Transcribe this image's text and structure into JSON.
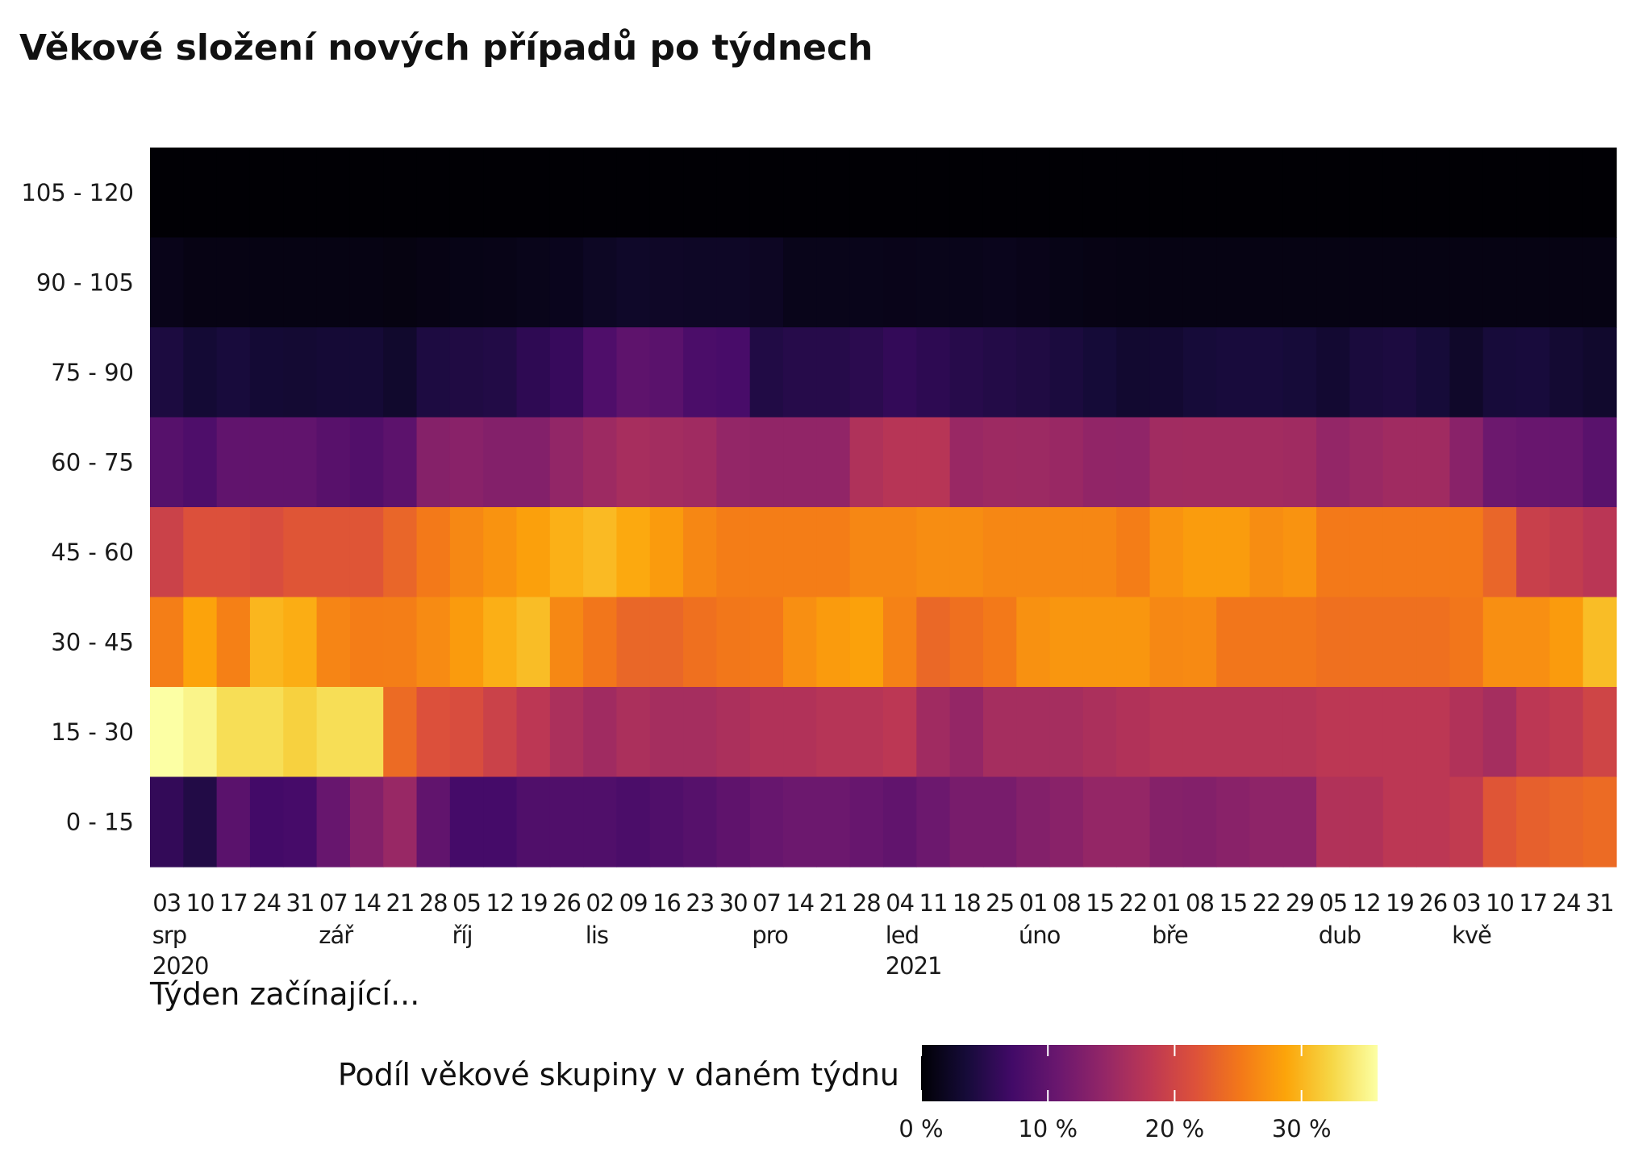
{
  "chart_data": {
    "type": "heatmap",
    "title": "Věkové složení nových případů po týdnech",
    "xlabel": "Týden začínající...",
    "ylabel": "",
    "legend_title": "Podíl věkové skupiny v daném týdnu",
    "legend_position": "bottom",
    "color_scale": "inferno",
    "value_range": [
      0,
      36
    ],
    "legend_ticks": [
      {
        "value": 0,
        "label": "0 %"
      },
      {
        "value": 10,
        "label": "10 %"
      },
      {
        "value": 20,
        "label": "20 %"
      },
      {
        "value": 30,
        "label": "30 %"
      }
    ],
    "age_groups": [
      "105 - 120",
      "90 - 105",
      "75 - 90",
      "60 - 75",
      "45 - 60",
      "30 - 45",
      "15 - 30",
      "0 - 15"
    ],
    "weeks": [
      {
        "date": "2020-08-03",
        "day": "03",
        "month": "srp",
        "year": "2020"
      },
      {
        "date": "2020-08-10",
        "day": "10"
      },
      {
        "date": "2020-08-17",
        "day": "17"
      },
      {
        "date": "2020-08-24",
        "day": "24"
      },
      {
        "date": "2020-08-31",
        "day": "31"
      },
      {
        "date": "2020-09-07",
        "day": "07",
        "month": "zář"
      },
      {
        "date": "2020-09-14",
        "day": "14"
      },
      {
        "date": "2020-09-21",
        "day": "21"
      },
      {
        "date": "2020-09-28",
        "day": "28"
      },
      {
        "date": "2020-10-05",
        "day": "05",
        "month": "říj"
      },
      {
        "date": "2020-10-12",
        "day": "12"
      },
      {
        "date": "2020-10-19",
        "day": "19"
      },
      {
        "date": "2020-10-26",
        "day": "26"
      },
      {
        "date": "2020-11-02",
        "day": "02",
        "month": "lis"
      },
      {
        "date": "2020-11-09",
        "day": "09"
      },
      {
        "date": "2020-11-16",
        "day": "16"
      },
      {
        "date": "2020-11-23",
        "day": "23"
      },
      {
        "date": "2020-11-30",
        "day": "30"
      },
      {
        "date": "2020-12-07",
        "day": "07",
        "month": "pro"
      },
      {
        "date": "2020-12-14",
        "day": "14"
      },
      {
        "date": "2020-12-21",
        "day": "21"
      },
      {
        "date": "2020-12-28",
        "day": "28"
      },
      {
        "date": "2021-01-04",
        "day": "04",
        "month": "led",
        "year": "2021"
      },
      {
        "date": "2021-01-11",
        "day": "11"
      },
      {
        "date": "2021-01-18",
        "day": "18"
      },
      {
        "date": "2021-01-25",
        "day": "25"
      },
      {
        "date": "2021-02-01",
        "day": "01",
        "month": "úno"
      },
      {
        "date": "2021-02-08",
        "day": "08"
      },
      {
        "date": "2021-02-15",
        "day": "15"
      },
      {
        "date": "2021-02-22",
        "day": "22"
      },
      {
        "date": "2021-03-01",
        "day": "01",
        "month": "bře"
      },
      {
        "date": "2021-03-08",
        "day": "08"
      },
      {
        "date": "2021-03-15",
        "day": "15"
      },
      {
        "date": "2021-03-22",
        "day": "22"
      },
      {
        "date": "2021-03-29",
        "day": "29"
      },
      {
        "date": "2021-04-05",
        "day": "05",
        "month": "dub"
      },
      {
        "date": "2021-04-12",
        "day": "12"
      },
      {
        "date": "2021-04-19",
        "day": "19"
      },
      {
        "date": "2021-04-26",
        "day": "26"
      },
      {
        "date": "2021-05-03",
        "day": "03",
        "month": "kvě"
      },
      {
        "date": "2021-05-10",
        "day": "10"
      },
      {
        "date": "2021-05-17",
        "day": "17"
      },
      {
        "date": "2021-05-24",
        "day": "24"
      },
      {
        "date": "2021-05-31",
        "day": "31"
      }
    ],
    "values_percent": [
      [
        0.1,
        0.1,
        0.1,
        0.1,
        0.1,
        0.1,
        0.1,
        0.1,
        0.1,
        0.1,
        0.1,
        0.1,
        0.1,
        0.1,
        0.1,
        0.1,
        0.1,
        0.1,
        0.1,
        0.1,
        0.1,
        0.1,
        0.1,
        0.1,
        0.1,
        0.1,
        0.1,
        0.1,
        0.1,
        0.1,
        0.1,
        0.1,
        0.1,
        0.1,
        0.1,
        0.1,
        0.1,
        0.1,
        0.1,
        0.1,
        0.1,
        0.1,
        0.1,
        0.1
      ],
      [
        1.4,
        1.1,
        1.1,
        1.0,
        1.0,
        1.0,
        1.0,
        0.9,
        1.1,
        1.2,
        1.3,
        1.5,
        1.7,
        2.2,
        2.5,
        2.4,
        2.3,
        2.3,
        2.1,
        1.5,
        1.5,
        1.5,
        1.4,
        1.5,
        1.5,
        1.6,
        1.4,
        1.2,
        1.1,
        1.0,
        1.0,
        1.0,
        1.0,
        1.0,
        1.0,
        1.0,
        1.0,
        1.0,
        1.0,
        1.0,
        1.0,
        1.0,
        1.0,
        1.0
      ],
      [
        4.1,
        3.3,
        3.8,
        3.3,
        3.2,
        3.4,
        3.4,
        2.8,
        4.2,
        4.4,
        4.6,
        5.6,
        6.3,
        8.4,
        9.7,
        9.4,
        8.0,
        7.7,
        4.5,
        4.9,
        4.9,
        5.3,
        6.0,
        5.5,
        5.0,
        4.7,
        4.4,
        4.0,
        3.5,
        3.0,
        3.1,
        3.6,
        3.8,
        3.8,
        3.6,
        3.1,
        3.9,
        4.1,
        3.6,
        2.6,
        3.7,
        3.8,
        3.2,
        2.8
      ],
      [
        9.0,
        8.3,
        10.0,
        10.0,
        10.0,
        9.2,
        8.6,
        9.5,
        13.2,
        13.5,
        13.0,
        13.0,
        14.3,
        15.3,
        16.2,
        15.8,
        15.5,
        14.4,
        14.2,
        14.2,
        14.2,
        16.9,
        17.6,
        17.6,
        14.9,
        15.3,
        15.2,
        14.9,
        14.2,
        14.1,
        15.6,
        15.7,
        15.7,
        15.7,
        15.5,
        14.4,
        15.0,
        15.5,
        15.5,
        13.5,
        11.0,
        10.6,
        10.5,
        9.3
      ],
      [
        19.5,
        21.5,
        21.5,
        21.0,
        22.0,
        22.0,
        22.0,
        23.5,
        25.3,
        26.5,
        27.4,
        28.4,
        29.6,
        30.3,
        29.1,
        28.0,
        26.4,
        25.6,
        25.6,
        25.6,
        25.6,
        26.4,
        26.4,
        26.9,
        26.9,
        26.4,
        26.4,
        26.4,
        26.4,
        25.6,
        27.4,
        28.1,
        28.1,
        26.9,
        27.4,
        25.3,
        25.3,
        25.3,
        25.3,
        25.3,
        23.5,
        19.3,
        18.7,
        17.8
      ],
      [
        25.7,
        28.6,
        25.8,
        30.0,
        29.4,
        26.2,
        25.6,
        25.7,
        26.7,
        28.0,
        29.5,
        30.5,
        26.5,
        25.0,
        23.6,
        23.6,
        24.5,
        25.1,
        25.2,
        27.0,
        28.0,
        28.5,
        26.0,
        23.7,
        24.5,
        25.3,
        27.2,
        27.6,
        27.6,
        27.6,
        26.5,
        26.6,
        25.0,
        25.0,
        25.0,
        24.5,
        24.5,
        24.5,
        24.5,
        25.0,
        27.0,
        27.0,
        28.0,
        30.5
      ],
      [
        36.0,
        35.0,
        33.0,
        33.0,
        32.0,
        33.0,
        33.0,
        24.0,
        21.5,
        21.0,
        19.5,
        18.0,
        16.5,
        15.5,
        16.5,
        16.0,
        16.0,
        16.5,
        17.0,
        17.0,
        17.5,
        17.5,
        18.0,
        15.5,
        14.5,
        16.0,
        16.0,
        16.0,
        16.5,
        17.0,
        17.5,
        17.5,
        17.5,
        17.5,
        17.5,
        18.0,
        18.0,
        18.0,
        18.0,
        17.0,
        16.0,
        18.0,
        18.5,
        20.0
      ],
      [
        6.0,
        4.6,
        9.4,
        7.3,
        7.6,
        10.5,
        13.0,
        14.8,
        10.0,
        7.5,
        7.5,
        8.5,
        8.5,
        8.5,
        8.0,
        8.5,
        9.0,
        9.8,
        10.5,
        11.0,
        11.0,
        10.5,
        10.0,
        11.0,
        12.0,
        12.0,
        13.0,
        13.5,
        14.5,
        14.5,
        13.2,
        13.0,
        13.5,
        14.0,
        14.0,
        17.0,
        17.0,
        18.0,
        18.0,
        18.5,
        22.0,
        23.0,
        23.5,
        24.0
      ]
    ]
  }
}
